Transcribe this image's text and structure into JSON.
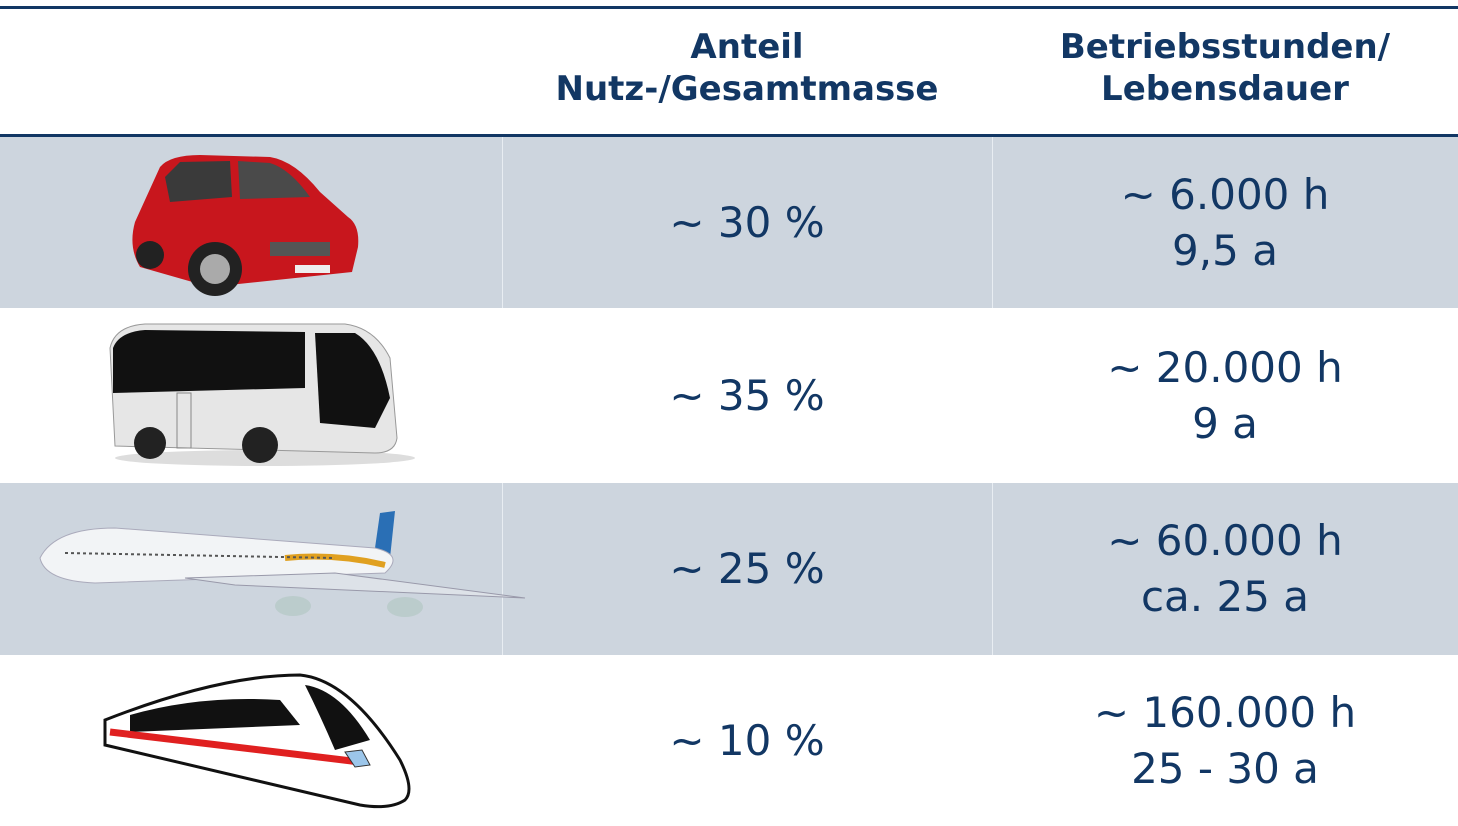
{
  "table": {
    "columns": [
      [
        "Anteil",
        "Nutz-/Gesamtmasse"
      ],
      [
        "Betriebsstunden/",
        "Lebensdauer"
      ]
    ],
    "rows": [
      {
        "share": "~ 30 %",
        "hours": [
          "~ 6.000 h",
          "9,5 a"
        ]
      },
      {
        "share": "~ 35 %",
        "hours": [
          "~ 20.000 h",
          "9 a"
        ]
      },
      {
        "share": "~ 25 %",
        "hours": [
          "~ 60.000 h",
          "ca. 25 a"
        ]
      },
      {
        "share": "~ 10 %",
        "hours": [
          "~ 160.000 h",
          "25 - 30 a"
        ]
      }
    ]
  }
}
